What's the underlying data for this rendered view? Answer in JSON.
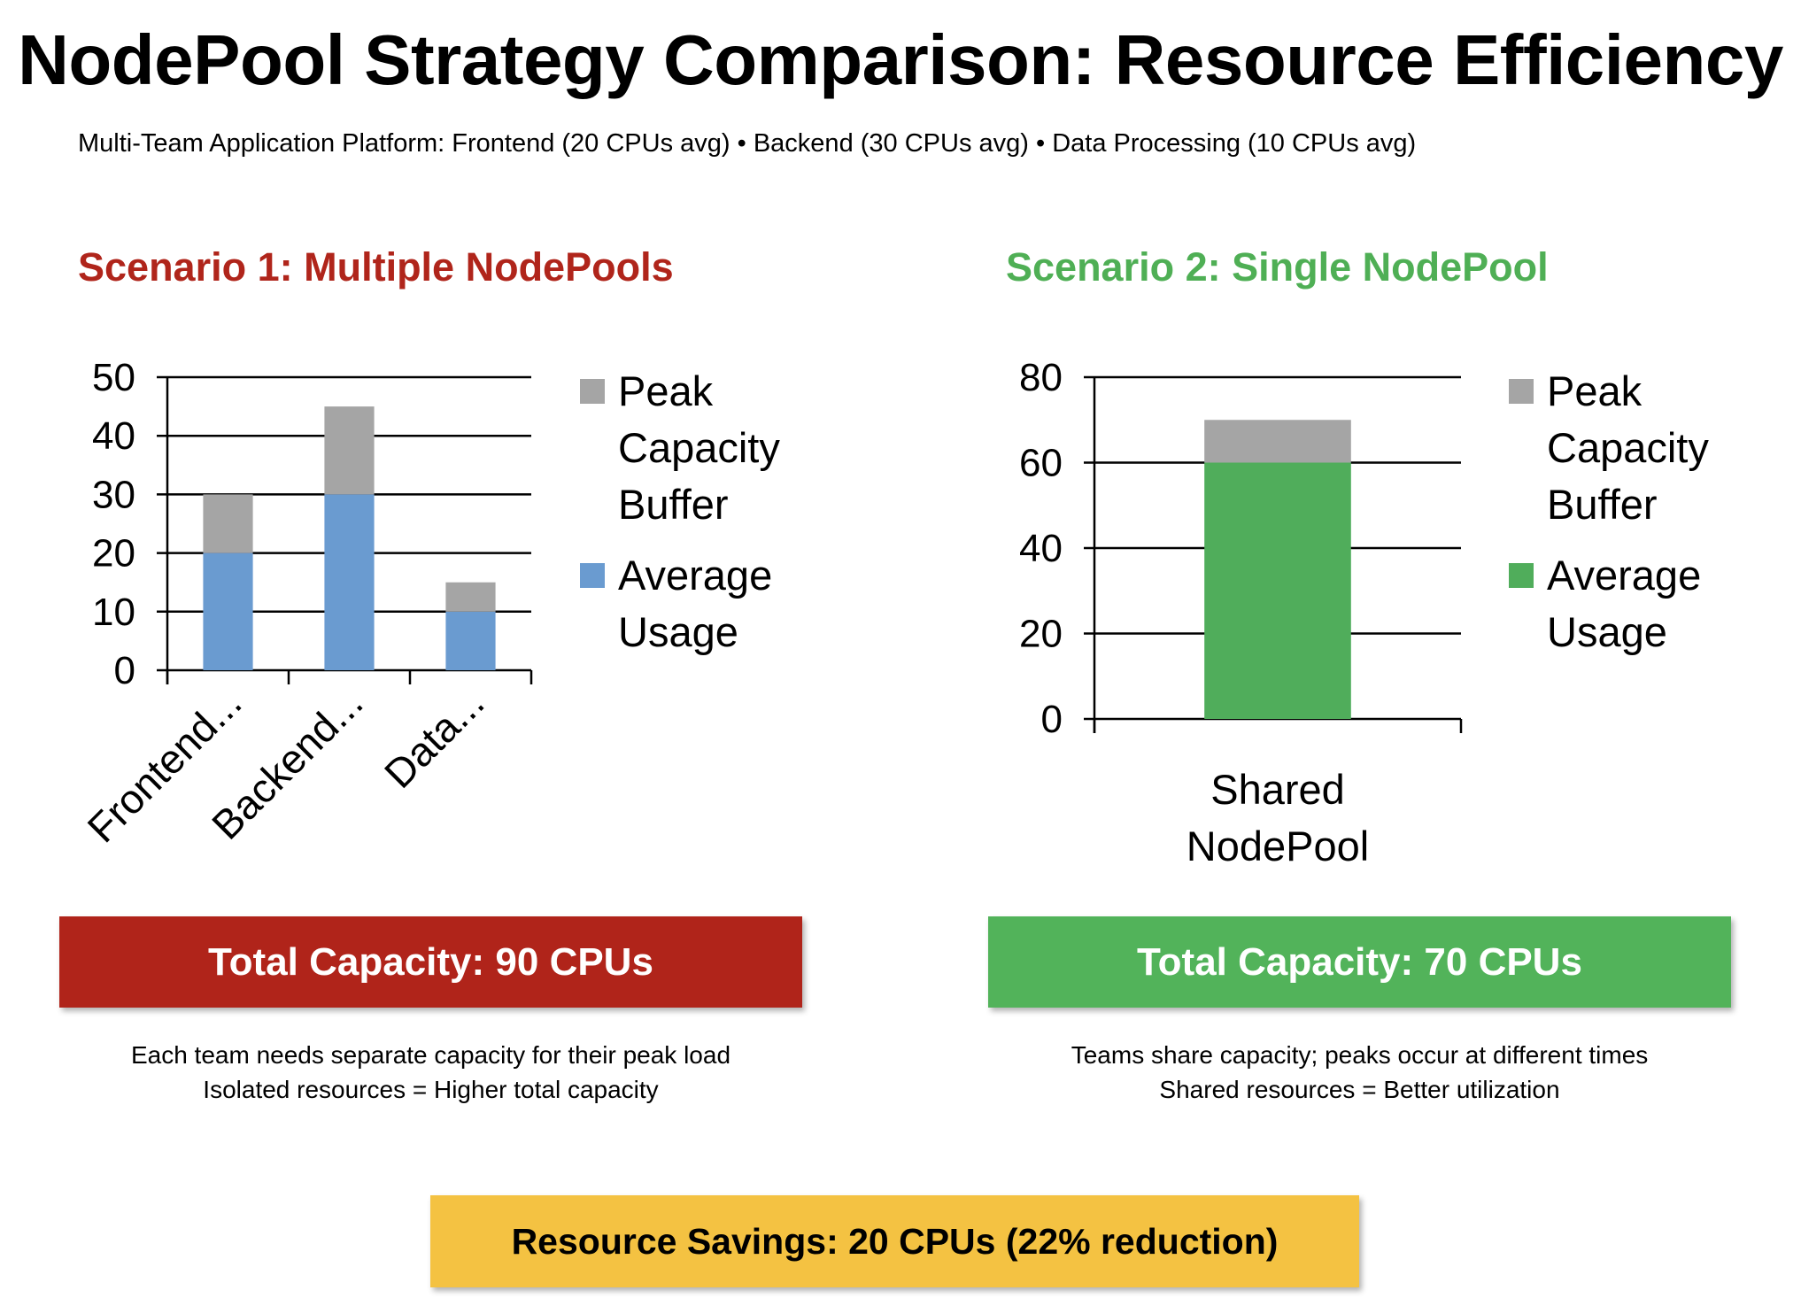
{
  "title": "NodePool Strategy Comparison: Resource Efficiency",
  "subtitle": "Multi-Team Application Platform: Frontend (20 CPUs avg) • Backend (30 CPUs avg) • Data Processing (10 CPUs avg)",
  "scenario1": {
    "heading": "Scenario 1: Multiple NodePools",
    "total": "Total Capacity: 90 CPUs",
    "notes": [
      "Each team needs separate capacity for their peak load",
      "Isolated resources = Higher total capacity"
    ]
  },
  "scenario2": {
    "heading": "Scenario 2: Single NodePool",
    "total": "Total Capacity: 70 CPUs",
    "notes": [
      "Teams share capacity; peaks occur at different times",
      "Shared resources = Better utilization"
    ]
  },
  "savings": "Resource Savings: 20 CPUs (22% reduction)",
  "colors": {
    "buffer": "#A5A5A5",
    "avg1": "#6A9BD0",
    "avg2": "#50AD5B",
    "red": "#B0241A",
    "green": "#52B35A",
    "yellow": "#F4C242"
  },
  "chart_data": [
    {
      "type": "bar",
      "stacked": true,
      "categories": [
        "Frontend...",
        "Backend...",
        "Data..."
      ],
      "series": [
        {
          "name": "Average Usage",
          "values": [
            20,
            30,
            10
          ],
          "color": "#6A9BD0"
        },
        {
          "name": "Peak Capacity Buffer",
          "values": [
            10,
            15,
            5
          ],
          "color": "#A5A5A5"
        }
      ],
      "yticks": [
        "0",
        "10",
        "20",
        "30",
        "40",
        "50"
      ],
      "ylim": [
        0,
        50
      ],
      "legend": [
        [
          "Peak",
          "Capacity",
          "Buffer"
        ],
        [
          "Average",
          "Usage"
        ]
      ],
      "grid": true,
      "legend_position": "right"
    },
    {
      "type": "bar",
      "stacked": true,
      "categories": [
        "Shared NodePool"
      ],
      "category_lines": [
        "Shared",
        "NodePool"
      ],
      "series": [
        {
          "name": "Average Usage",
          "values": [
            60
          ],
          "color": "#50AD5B"
        },
        {
          "name": "Peak Capacity Buffer",
          "values": [
            10
          ],
          "color": "#A5A5A5"
        }
      ],
      "yticks": [
        "0",
        "20",
        "40",
        "60",
        "80"
      ],
      "ylim": [
        0,
        80
      ],
      "legend": [
        [
          "Peak",
          "Capacity",
          "Buffer"
        ],
        [
          "Average",
          "Usage"
        ]
      ],
      "grid": true,
      "legend_position": "right"
    }
  ]
}
